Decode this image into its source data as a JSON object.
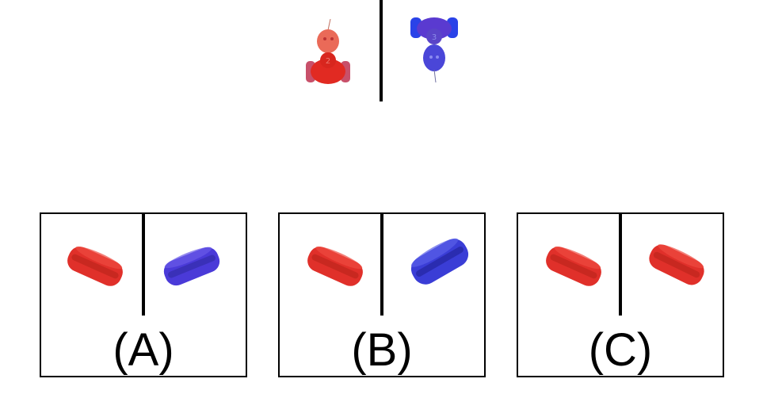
{
  "reference": {
    "left_object": {
      "icon": "red-toy-car-icon",
      "color": "#e03a2f",
      "number": "2"
    },
    "right_object": {
      "icon": "blue-toy-car-icon",
      "color": "#3a3fd6",
      "number": "3"
    }
  },
  "options": [
    {
      "label": "(A)",
      "left": {
        "icon": "red-sandwich-icon",
        "color": "#e0302a"
      },
      "right": {
        "icon": "blue-sandwich-icon",
        "color": "#4a3ad8"
      }
    },
    {
      "label": "(B)",
      "left": {
        "icon": "red-sandwich-icon",
        "color": "#e0302a"
      },
      "right": {
        "icon": "blue-sandwich-icon",
        "color": "#3a3dd6"
      }
    },
    {
      "label": "(C)",
      "left": {
        "icon": "red-sandwich-icon",
        "color": "#e0302a"
      },
      "right": {
        "icon": "red-sandwich-icon",
        "color": "#e0302a"
      }
    }
  ]
}
